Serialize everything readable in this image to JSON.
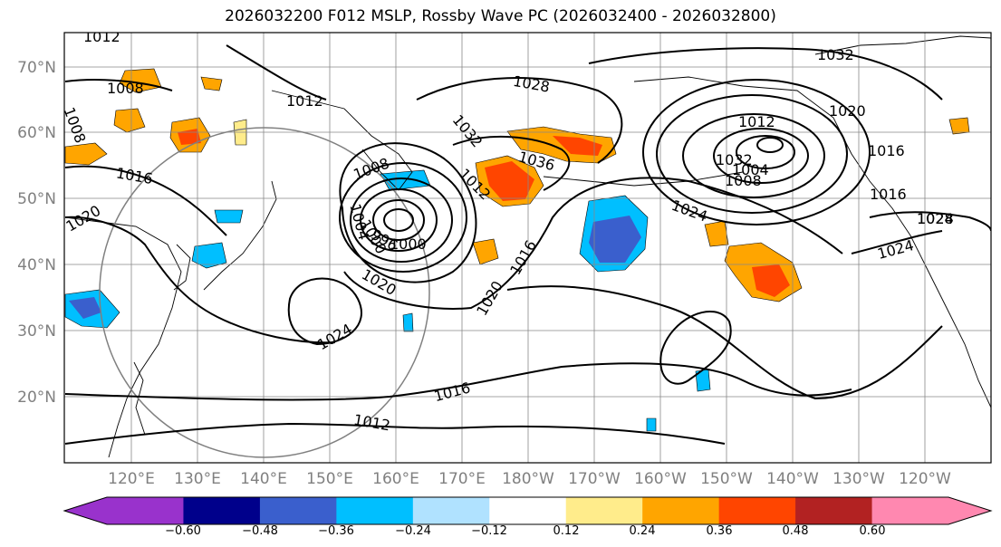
{
  "title": "2026032200 F012 MSLP, Rossby Wave PC (2026032400 - 2026032800)",
  "lat_labels": [
    "70°N",
    "60°N",
    "50°N",
    "40°N",
    "30°N",
    "20°N"
  ],
  "lon_labels": [
    "120°E",
    "130°E",
    "140°E",
    "150°E",
    "160°E",
    "170°E",
    "180°W",
    "170°W",
    "160°W",
    "150°W",
    "140°W",
    "130°W",
    "120°W"
  ],
  "colorbar": {
    "colors": [
      "#9932cc",
      "#00008b",
      "#3a5fcd",
      "#00bfff",
      "#b0e2ff",
      "#ffffff",
      "#ffec8b",
      "#ffa500",
      "#ff4500",
      "#b22222",
      "#ff88b0"
    ],
    "tick_labels": [
      "−0.60",
      "−0.48",
      "−0.36",
      "−0.24",
      "−0.12",
      "0.12",
      "0.24",
      "0.36",
      "0.48",
      "0.60"
    ]
  },
  "contour_labels": [
    "1012",
    "1008",
    "1012",
    "1008",
    "1016",
    "1020",
    "1008",
    "1004",
    "1000",
    "996",
    "1000",
    "1020",
    "1024",
    "1032",
    "1028",
    "1032",
    "1036",
    "1012",
    "1016",
    "1020",
    "1024",
    "1016",
    "1012",
    "1012",
    "1016",
    "1004",
    "1008",
    "1032",
    "1020",
    "1016",
    "1024",
    "1028",
    "1024"
  ]
}
